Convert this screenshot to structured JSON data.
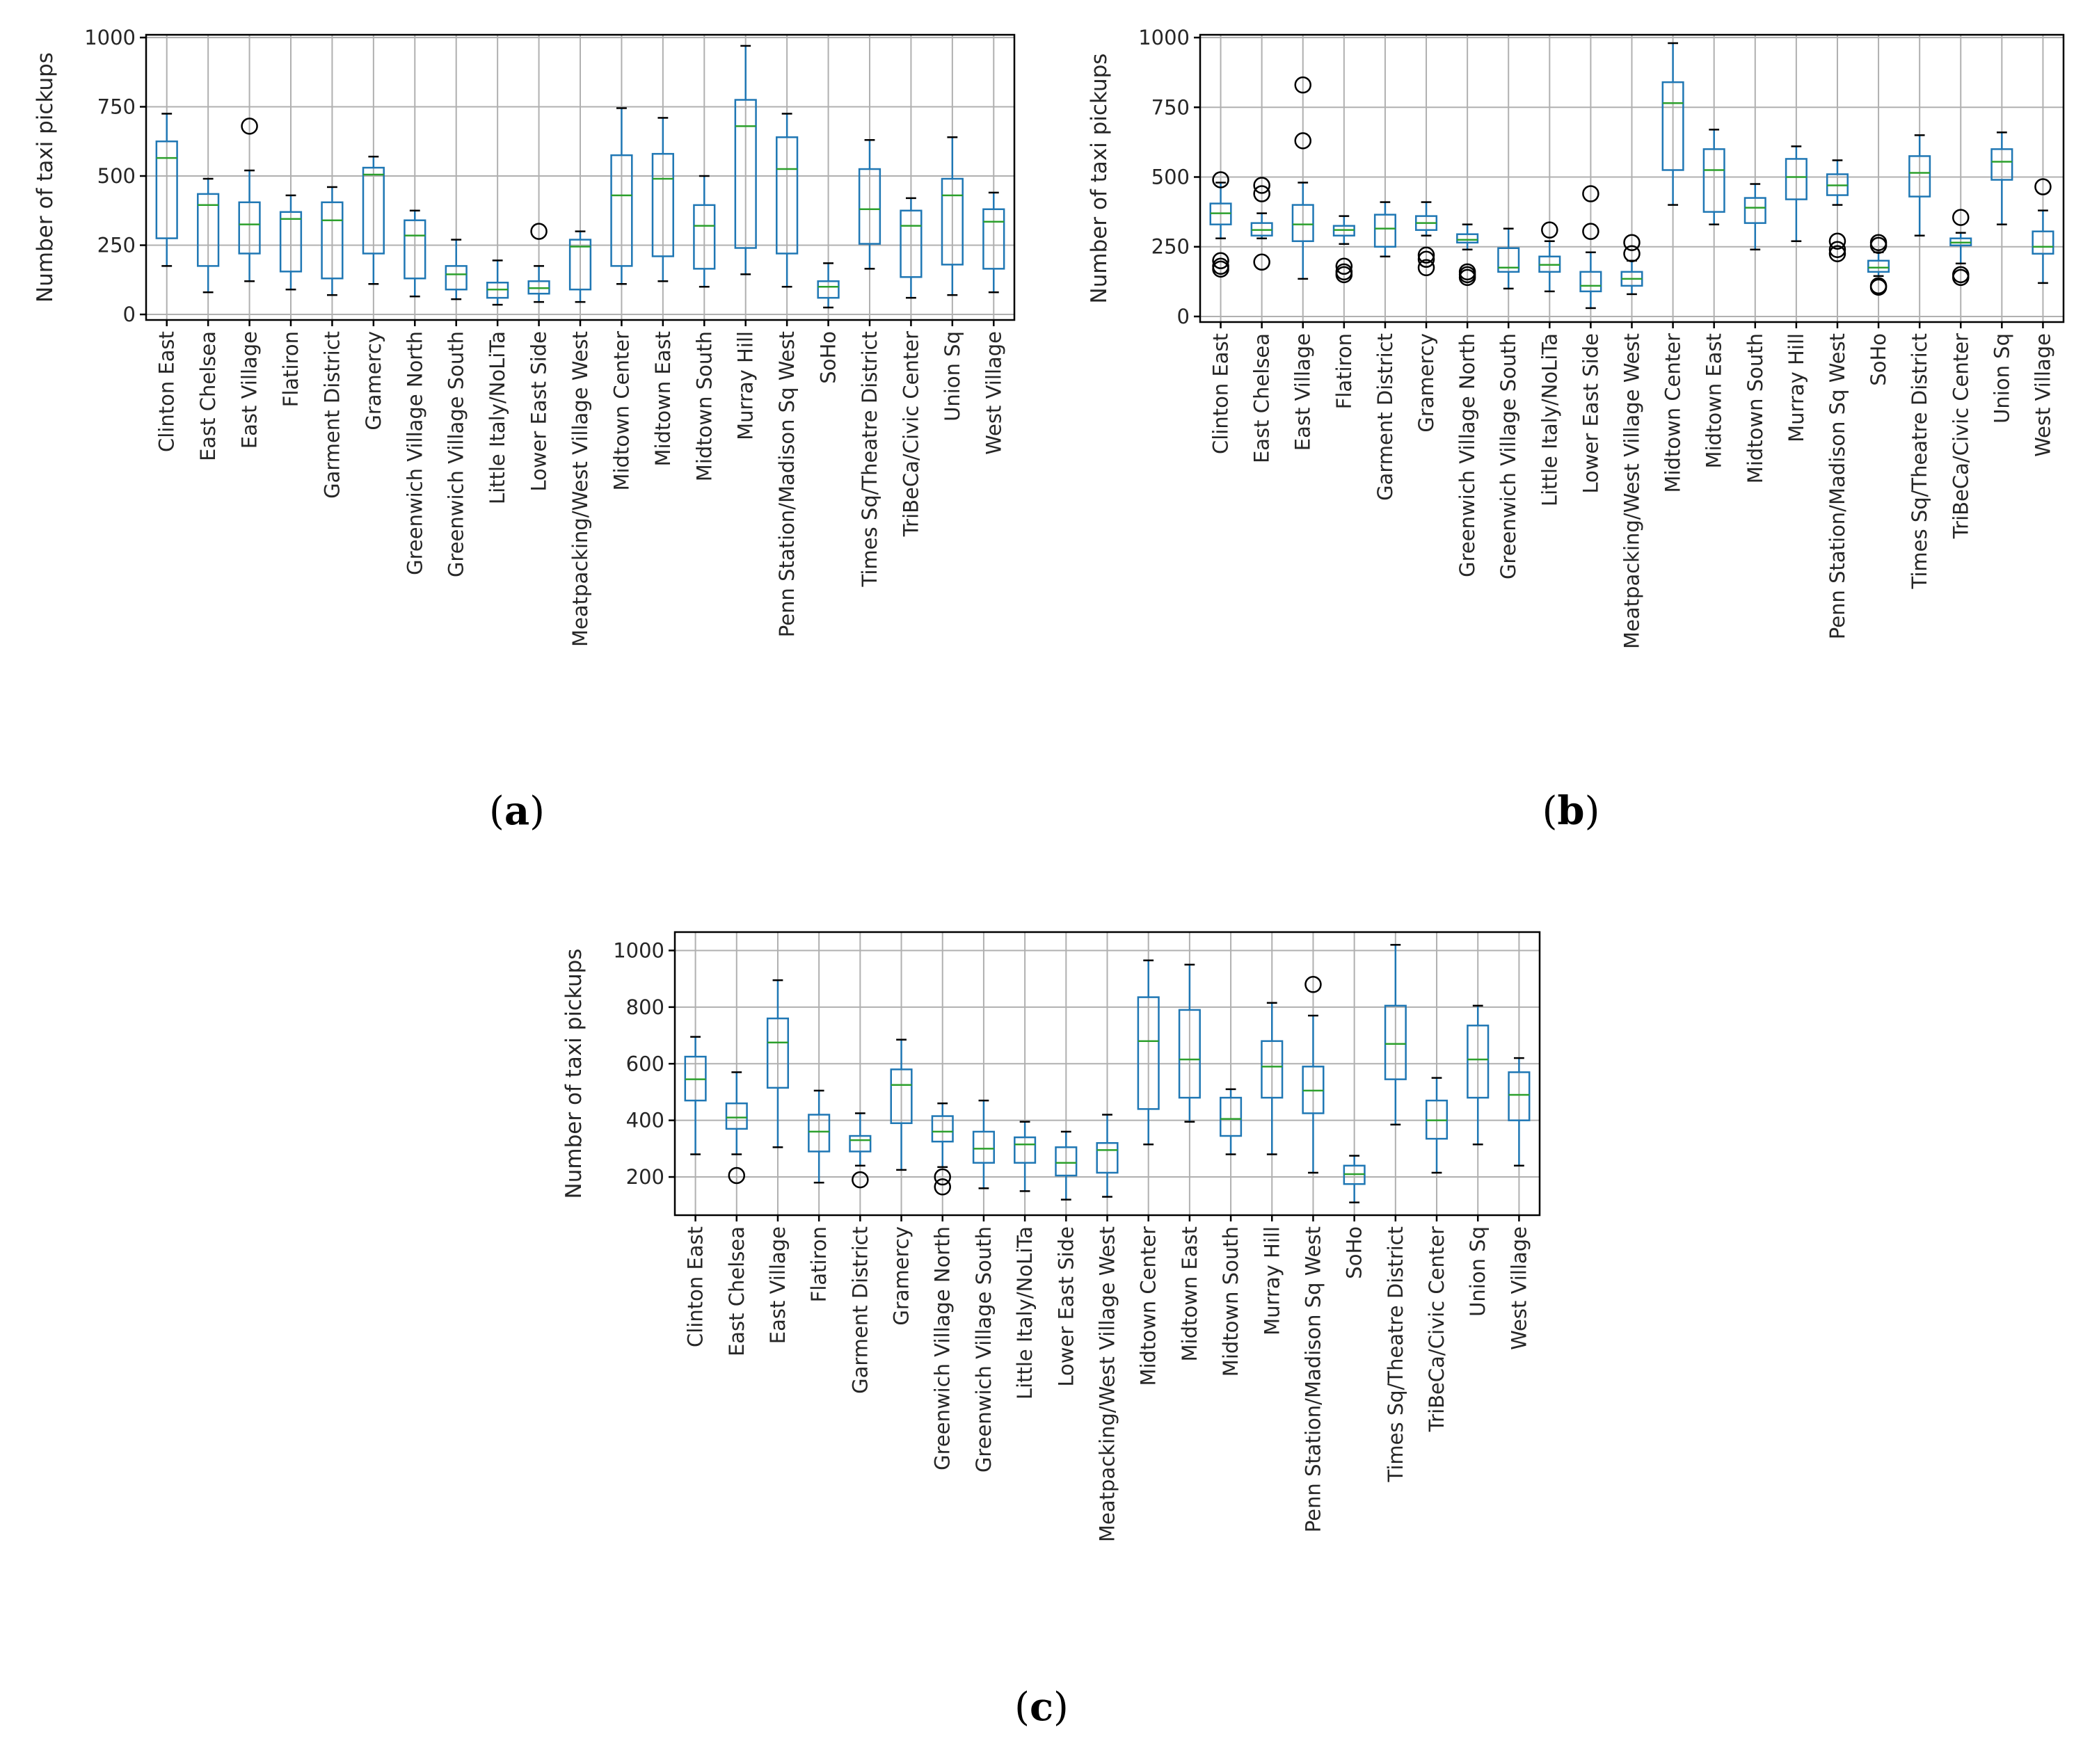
{
  "colors": {
    "box": "#1f77b4",
    "median": "#2ca02c",
    "whisker": "#1f77b4",
    "cap": "#000000",
    "flier": "#000000",
    "grid": "#b0b0b0",
    "axes": "#000000"
  },
  "chart_data": [
    {
      "type": "boxplot",
      "caption_letter": "a",
      "ylabel": "Number of taxi pickups",
      "ylim": [
        -20,
        1010
      ],
      "yticks": [
        0,
        250,
        500,
        750,
        1000
      ],
      "grid": true,
      "categories": [
        "Clinton East",
        "East Chelsea",
        "East Village",
        "Flatiron",
        "Garment District",
        "Gramercy",
        "Greenwich Village North",
        "Greenwich Village South",
        "Little Italy/NoLiTa",
        "Lower East Side",
        "Meatpacking/West Village West",
        "Midtown Center",
        "Midtown East",
        "Midtown South",
        "Murray Hill",
        "Penn Station/Madison Sq West",
        "SoHo",
        "Times Sq/Theatre District",
        "TriBeCa/Civic Center",
        "Union Sq",
        "West Village"
      ],
      "boxes": [
        {
          "whislo": 175,
          "q1": 275,
          "med": 565,
          "q3": 625,
          "whishi": 725,
          "fliers": []
        },
        {
          "whislo": 80,
          "q1": 175,
          "med": 395,
          "q3": 435,
          "whishi": 490,
          "fliers": []
        },
        {
          "whislo": 120,
          "q1": 220,
          "med": 325,
          "q3": 405,
          "whishi": 520,
          "fliers": [
            680
          ]
        },
        {
          "whislo": 90,
          "q1": 155,
          "med": 345,
          "q3": 370,
          "whishi": 430,
          "fliers": []
        },
        {
          "whislo": 70,
          "q1": 130,
          "med": 340,
          "q3": 405,
          "whishi": 460,
          "fliers": []
        },
        {
          "whislo": 110,
          "q1": 220,
          "med": 505,
          "q3": 530,
          "whishi": 570,
          "fliers": []
        },
        {
          "whislo": 65,
          "q1": 130,
          "med": 285,
          "q3": 340,
          "whishi": 375,
          "fliers": []
        },
        {
          "whislo": 55,
          "q1": 90,
          "med": 145,
          "q3": 175,
          "whishi": 270,
          "fliers": []
        },
        {
          "whislo": 35,
          "q1": 60,
          "med": 90,
          "q3": 115,
          "whishi": 195,
          "fliers": []
        },
        {
          "whislo": 45,
          "q1": 75,
          "med": 95,
          "q3": 120,
          "whishi": 175,
          "fliers": [
            300
          ]
        },
        {
          "whislo": 45,
          "q1": 90,
          "med": 245,
          "q3": 270,
          "whishi": 300,
          "fliers": []
        },
        {
          "whislo": 110,
          "q1": 175,
          "med": 430,
          "q3": 575,
          "whishi": 745,
          "fliers": []
        },
        {
          "whislo": 120,
          "q1": 210,
          "med": 490,
          "q3": 580,
          "whishi": 710,
          "fliers": []
        },
        {
          "whislo": 100,
          "q1": 165,
          "med": 320,
          "q3": 395,
          "whishi": 500,
          "fliers": []
        },
        {
          "whislo": 145,
          "q1": 240,
          "med": 680,
          "q3": 775,
          "whishi": 970,
          "fliers": []
        },
        {
          "whislo": 100,
          "q1": 220,
          "med": 525,
          "q3": 640,
          "whishi": 725,
          "fliers": []
        },
        {
          "whislo": 25,
          "q1": 60,
          "med": 100,
          "q3": 120,
          "whishi": 185,
          "fliers": []
        },
        {
          "whislo": 165,
          "q1": 255,
          "med": 380,
          "q3": 525,
          "whishi": 630,
          "fliers": []
        },
        {
          "whislo": 60,
          "q1": 135,
          "med": 320,
          "q3": 375,
          "whishi": 420,
          "fliers": []
        },
        {
          "whislo": 70,
          "q1": 180,
          "med": 430,
          "q3": 490,
          "whishi": 640,
          "fliers": []
        },
        {
          "whislo": 80,
          "q1": 165,
          "med": 335,
          "q3": 380,
          "whishi": 440,
          "fliers": []
        }
      ]
    },
    {
      "type": "boxplot",
      "caption_letter": "b",
      "ylabel": "Number of taxi pickups",
      "ylim": [
        -20,
        1010
      ],
      "yticks": [
        0,
        250,
        500,
        750,
        1000
      ],
      "grid": true,
      "categories": [
        "Clinton East",
        "East Chelsea",
        "East Village",
        "Flatiron",
        "Garment District",
        "Gramercy",
        "Greenwich Village North",
        "Greenwich Village South",
        "Little Italy/NoLiTa",
        "Lower East Side",
        "Meatpacking/West Village West",
        "Midtown Center",
        "Midtown East",
        "Midtown South",
        "Murray Hill",
        "Penn Station/Madison Sq West",
        "SoHo",
        "Times Sq/Theatre District",
        "TriBeCa/Civic Center",
        "Union Sq",
        "West Village"
      ],
      "boxes": [
        {
          "whislo": 280,
          "q1": 330,
          "med": 370,
          "q3": 405,
          "whishi": 480,
          "fliers": [
            490,
            200,
            180,
            170
          ]
        },
        {
          "whislo": 280,
          "q1": 290,
          "med": 310,
          "q3": 335,
          "whishi": 370,
          "fliers": [
            470,
            440,
            195
          ]
        },
        {
          "whislo": 135,
          "q1": 270,
          "med": 330,
          "q3": 400,
          "whishi": 480,
          "fliers": [
            830,
            630
          ]
        },
        {
          "whislo": 260,
          "q1": 290,
          "med": 310,
          "q3": 325,
          "whishi": 360,
          "fliers": [
            180,
            160,
            150
          ]
        },
        {
          "whislo": 215,
          "q1": 250,
          "med": 315,
          "q3": 365,
          "whishi": 410,
          "fliers": []
        },
        {
          "whislo": 290,
          "q1": 310,
          "med": 335,
          "q3": 360,
          "whishi": 410,
          "fliers": [
            220,
            205,
            175
          ]
        },
        {
          "whislo": 240,
          "q1": 265,
          "med": 275,
          "q3": 295,
          "whishi": 330,
          "fliers": [
            160,
            150,
            140
          ]
        },
        {
          "whislo": 100,
          "q1": 160,
          "med": 175,
          "q3": 245,
          "whishi": 315,
          "fliers": []
        },
        {
          "whislo": 90,
          "q1": 160,
          "med": 185,
          "q3": 215,
          "whishi": 270,
          "fliers": [
            310
          ]
        },
        {
          "whislo": 30,
          "q1": 90,
          "med": 110,
          "q3": 160,
          "whishi": 230,
          "fliers": [
            440,
            305
          ]
        },
        {
          "whislo": 80,
          "q1": 110,
          "med": 135,
          "q3": 160,
          "whishi": 200,
          "fliers": [
            265,
            225
          ]
        },
        {
          "whislo": 400,
          "q1": 525,
          "med": 765,
          "q3": 840,
          "whishi": 980,
          "fliers": []
        },
        {
          "whislo": 330,
          "q1": 375,
          "med": 525,
          "q3": 600,
          "whishi": 670,
          "fliers": []
        },
        {
          "whislo": 240,
          "q1": 335,
          "med": 390,
          "q3": 425,
          "whishi": 475,
          "fliers": []
        },
        {
          "whislo": 270,
          "q1": 420,
          "med": 500,
          "q3": 565,
          "whishi": 610,
          "fliers": []
        },
        {
          "whislo": 400,
          "q1": 435,
          "med": 470,
          "q3": 510,
          "whishi": 560,
          "fliers": [
            270,
            240,
            225
          ]
        },
        {
          "whislo": 145,
          "q1": 160,
          "med": 175,
          "q3": 200,
          "whishi": 230,
          "fliers": [
            265,
            255,
            110,
            105
          ]
        },
        {
          "whislo": 290,
          "q1": 430,
          "med": 515,
          "q3": 575,
          "whishi": 650,
          "fliers": []
        },
        {
          "whislo": 190,
          "q1": 255,
          "med": 265,
          "q3": 280,
          "whishi": 300,
          "fliers": [
            355,
            150,
            140
          ]
        },
        {
          "whislo": 330,
          "q1": 490,
          "med": 555,
          "q3": 600,
          "whishi": 660,
          "fliers": []
        },
        {
          "whislo": 120,
          "q1": 225,
          "med": 250,
          "q3": 305,
          "whishi": 380,
          "fliers": [
            465
          ]
        }
      ]
    },
    {
      "type": "boxplot",
      "caption_letter": "c",
      "ylabel": "Number of taxi pickups",
      "ylim": [
        65,
        1065
      ],
      "yticks": [
        200,
        400,
        600,
        800,
        1000
      ],
      "grid": true,
      "categories": [
        "Clinton East",
        "East Chelsea",
        "East Village",
        "Flatiron",
        "Garment District",
        "Gramercy",
        "Greenwich Village North",
        "Greenwich Village South",
        "Little Italy/NoLiTa",
        "Lower East Side",
        "Meatpacking/West Village West",
        "Midtown Center",
        "Midtown East",
        "Midtown South",
        "Murray Hill",
        "Penn Station/Madison Sq West",
        "SoHo",
        "Times Sq/Theatre District",
        "TriBeCa/Civic Center",
        "Union Sq",
        "West Village"
      ],
      "boxes": [
        {
          "whislo": 280,
          "q1": 470,
          "med": 545,
          "q3": 625,
          "whishi": 695,
          "fliers": []
        },
        {
          "whislo": 280,
          "q1": 370,
          "med": 410,
          "q3": 460,
          "whishi": 570,
          "fliers": [
            205
          ]
        },
        {
          "whislo": 305,
          "q1": 515,
          "med": 675,
          "q3": 760,
          "whishi": 895,
          "fliers": []
        },
        {
          "whislo": 180,
          "q1": 290,
          "med": 360,
          "q3": 420,
          "whishi": 505,
          "fliers": []
        },
        {
          "whislo": 240,
          "q1": 290,
          "med": 330,
          "q3": 345,
          "whishi": 425,
          "fliers": [
            190
          ]
        },
        {
          "whislo": 225,
          "q1": 390,
          "med": 525,
          "q3": 580,
          "whishi": 685,
          "fliers": []
        },
        {
          "whislo": 235,
          "q1": 325,
          "med": 360,
          "q3": 415,
          "whishi": 460,
          "fliers": [
            200,
            165
          ]
        },
        {
          "whislo": 160,
          "q1": 250,
          "med": 300,
          "q3": 360,
          "whishi": 470,
          "fliers": []
        },
        {
          "whislo": 150,
          "q1": 250,
          "med": 315,
          "q3": 340,
          "whishi": 395,
          "fliers": []
        },
        {
          "whislo": 120,
          "q1": 205,
          "med": 250,
          "q3": 305,
          "whishi": 360,
          "fliers": []
        },
        {
          "whislo": 130,
          "q1": 215,
          "med": 295,
          "q3": 320,
          "whishi": 420,
          "fliers": []
        },
        {
          "whislo": 315,
          "q1": 440,
          "med": 680,
          "q3": 835,
          "whishi": 965,
          "fliers": []
        },
        {
          "whislo": 395,
          "q1": 480,
          "med": 615,
          "q3": 790,
          "whishi": 950,
          "fliers": []
        },
        {
          "whislo": 280,
          "q1": 345,
          "med": 405,
          "q3": 480,
          "whishi": 510,
          "fliers": []
        },
        {
          "whislo": 280,
          "q1": 480,
          "med": 590,
          "q3": 680,
          "whishi": 815,
          "fliers": []
        },
        {
          "whislo": 215,
          "q1": 425,
          "med": 505,
          "q3": 590,
          "whishi": 770,
          "fliers": [
            880
          ]
        },
        {
          "whislo": 110,
          "q1": 175,
          "med": 210,
          "q3": 240,
          "whishi": 275,
          "fliers": []
        },
        {
          "whislo": 385,
          "q1": 545,
          "med": 670,
          "q3": 805,
          "whishi": 1020,
          "fliers": []
        },
        {
          "whislo": 215,
          "q1": 335,
          "med": 400,
          "q3": 470,
          "whishi": 550,
          "fliers": []
        },
        {
          "whislo": 315,
          "q1": 480,
          "med": 615,
          "q3": 735,
          "whishi": 805,
          "fliers": []
        },
        {
          "whislo": 240,
          "q1": 400,
          "med": 490,
          "q3": 570,
          "whishi": 620,
          "fliers": []
        }
      ]
    }
  ]
}
